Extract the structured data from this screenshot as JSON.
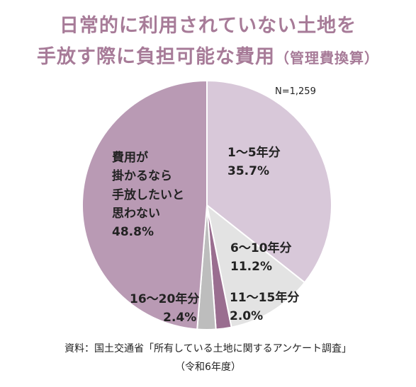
{
  "title_line1": "日常的に利用されていない土地を",
  "title_line2_main": "手放す際に負担可能な費用",
  "title_line2_paren": "（管理費換算）",
  "n_label": "N=1,259",
  "source_line1": "資料：国土交通省「所有している土地に関するアンケート調査」",
  "source_line2": "（令和6年度）",
  "chart_data": {
    "type": "pie",
    "title": "日常的に利用されていない土地を手放す際に負担可能な費用（管理費換算）",
    "start": "12 o'clock, clockwise",
    "slices": [
      {
        "label": "1〜5年分",
        "value": 35.7,
        "value_text": "35.7%",
        "color": "#d8c8d9"
      },
      {
        "label": "6〜10年分",
        "value": 11.2,
        "value_text": "11.2%",
        "color": "#e3e3e3"
      },
      {
        "label": "11〜15年分",
        "value": 2.0,
        "value_text": "2.0%",
        "color": "#9a6e90"
      },
      {
        "label": "16〜20年分",
        "value": 2.4,
        "value_text": "2.4%",
        "color": "#bdbdbd"
      },
      {
        "label_lines": [
          "費用が",
          "掛かるなら",
          "手放したいと",
          "思わない"
        ],
        "value": 48.8,
        "value_text": "48.8%",
        "color": "#b99ab4"
      }
    ]
  }
}
